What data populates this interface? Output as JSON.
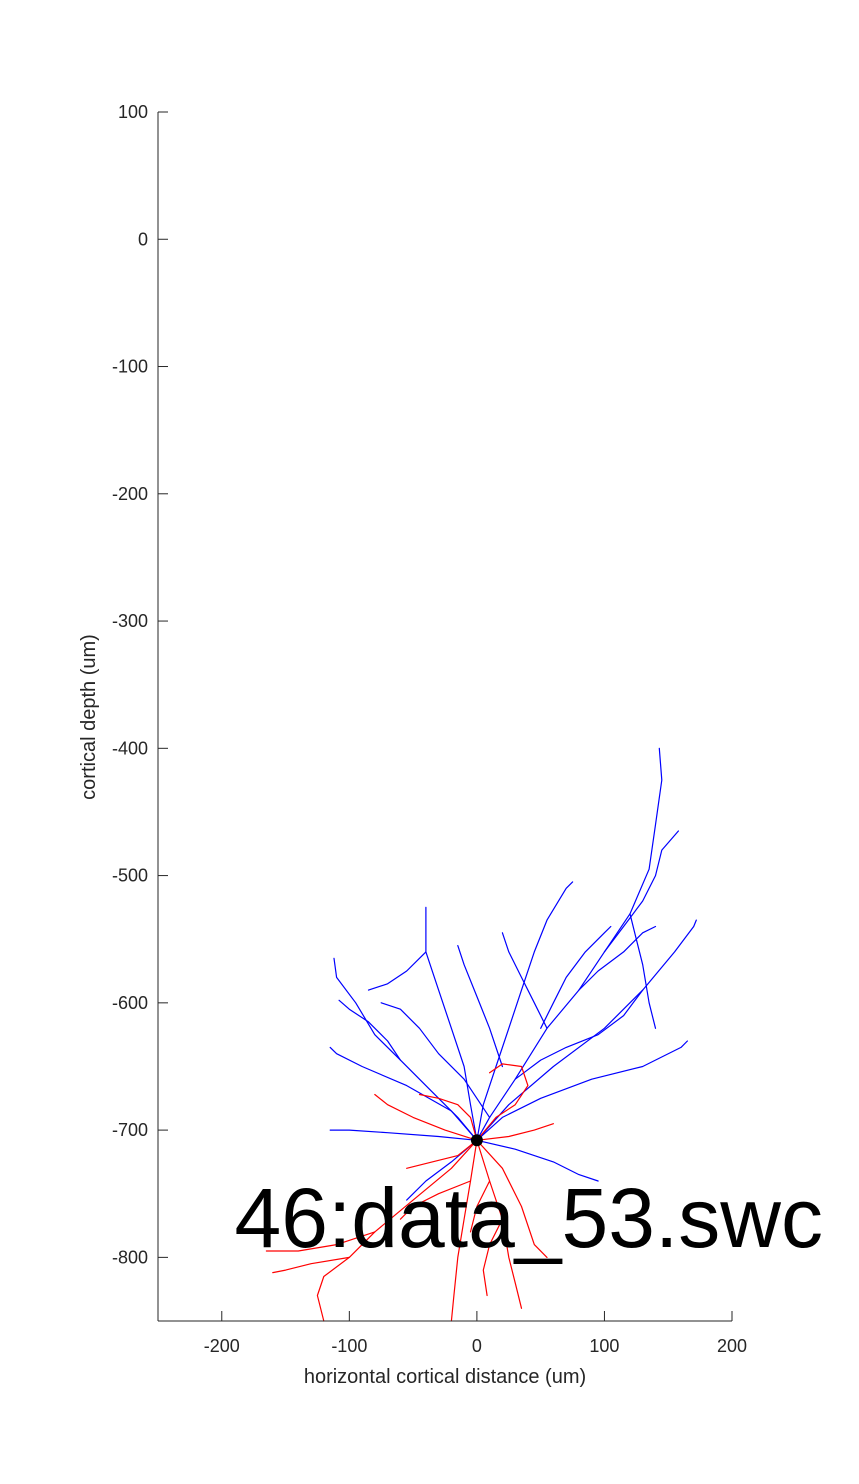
{
  "chart_data": {
    "type": "scatter",
    "title": "",
    "xlabel": "horizontal cortical distance (um)",
    "ylabel": "cortical depth (um)",
    "xlim": [
      -250,
      200
    ],
    "ylim": [
      -850,
      100
    ],
    "xticks": [
      -200,
      -100,
      0,
      100,
      200
    ],
    "yticks": [
      100,
      0,
      -100,
      -200,
      -300,
      -400,
      -500,
      -600,
      -700,
      -800
    ],
    "annotation": {
      "text": "46:data_53.swc",
      "x": -190,
      "y": -770
    },
    "grid": false,
    "legend": "none",
    "series": [
      {
        "role": "soma",
        "color": "#000000",
        "points": [
          [
            0,
            -708
          ]
        ]
      },
      {
        "role": "apical",
        "color": "#0000ff",
        "branches": [
          [
            [
              0,
              -708
            ],
            [
              10,
              -690
            ],
            [
              30,
              -660
            ],
            [
              55,
              -620
            ],
            [
              80,
              -590
            ],
            [
              100,
              -560
            ],
            [
              120,
              -530
            ],
            [
              135,
              -495
            ],
            [
              140,
              -460
            ],
            [
              145,
              -425
            ],
            [
              143,
              -400
            ]
          ],
          [
            [
              0,
              -708
            ],
            [
              -15,
              -690
            ],
            [
              -35,
              -670
            ],
            [
              -60,
              -645
            ],
            [
              -80,
              -625
            ],
            [
              -95,
              -600
            ],
            [
              -110,
              -580
            ],
            [
              -112,
              -565
            ]
          ],
          [
            [
              0,
              -708
            ],
            [
              -5,
              -680
            ],
            [
              -10,
              -650
            ],
            [
              -20,
              -620
            ],
            [
              -30,
              -590
            ],
            [
              -40,
              -560
            ],
            [
              -40,
              -525
            ]
          ],
          [
            [
              0,
              -708
            ],
            [
              5,
              -680
            ],
            [
              15,
              -650
            ],
            [
              25,
              -620
            ],
            [
              35,
              -590
            ],
            [
              45,
              -560
            ],
            [
              55,
              -535
            ],
            [
              70,
              -510
            ],
            [
              75,
              -505
            ]
          ],
          [
            [
              0,
              -708
            ],
            [
              25,
              -680
            ],
            [
              60,
              -650
            ],
            [
              100,
              -620
            ],
            [
              130,
              -590
            ],
            [
              155,
              -560
            ],
            [
              170,
              -540
            ],
            [
              172,
              -535
            ]
          ],
          [
            [
              0,
              -708
            ],
            [
              20,
              -690
            ],
            [
              50,
              -675
            ],
            [
              90,
              -660
            ],
            [
              130,
              -650
            ],
            [
              160,
              -635
            ],
            [
              165,
              -630
            ]
          ],
          [
            [
              0,
              -708
            ],
            [
              -30,
              -705
            ],
            [
              -70,
              -702
            ],
            [
              -100,
              -700
            ],
            [
              -115,
              -700
            ]
          ],
          [
            [
              0,
              -708
            ],
            [
              -20,
              -685
            ],
            [
              -55,
              -665
            ],
            [
              -90,
              -650
            ],
            [
              -110,
              -640
            ],
            [
              -115,
              -635
            ]
          ],
          [
            [
              50,
              -620
            ],
            [
              60,
              -600
            ],
            [
              70,
              -580
            ],
            [
              85,
              -560
            ],
            [
              100,
              -545
            ],
            [
              105,
              -540
            ]
          ],
          [
            [
              20,
              -650
            ],
            [
              10,
              -620
            ],
            [
              0,
              -595
            ],
            [
              -10,
              -570
            ],
            [
              -15,
              -555
            ]
          ],
          [
            [
              80,
              -590
            ],
            [
              95,
              -575
            ],
            [
              115,
              -560
            ],
            [
              130,
              -545
            ],
            [
              140,
              -540
            ]
          ],
          [
            [
              100,
              -560
            ],
            [
              115,
              -540
            ],
            [
              130,
              -520
            ],
            [
              140,
              -500
            ],
            [
              145,
              -480
            ],
            [
              158,
              -465
            ]
          ],
          [
            [
              30,
              -660
            ],
            [
              50,
              -645
            ],
            [
              70,
              -635
            ],
            [
              95,
              -625
            ],
            [
              115,
              -610
            ],
            [
              130,
              -590
            ]
          ],
          [
            [
              -40,
              -560
            ],
            [
              -55,
              -575
            ],
            [
              -70,
              -585
            ],
            [
              -85,
              -590
            ]
          ],
          [
            [
              10,
              -690
            ],
            [
              -10,
              -660
            ],
            [
              -30,
              -640
            ],
            [
              -45,
              -620
            ],
            [
              -60,
              -605
            ],
            [
              -75,
              -600
            ]
          ],
          [
            [
              0,
              -708
            ],
            [
              30,
              -715
            ],
            [
              60,
              -725
            ],
            [
              80,
              -735
            ],
            [
              95,
              -740
            ]
          ],
          [
            [
              0,
              -708
            ],
            [
              -20,
              -725
            ],
            [
              -40,
              -740
            ],
            [
              -55,
              -755
            ]
          ],
          [
            [
              55,
              -620
            ],
            [
              45,
              -600
            ],
            [
              35,
              -580
            ],
            [
              25,
              -560
            ],
            [
              20,
              -545
            ]
          ],
          [
            [
              120,
              -530
            ],
            [
              125,
              -550
            ],
            [
              130,
              -570
            ],
            [
              135,
              -600
            ],
            [
              140,
              -620
            ]
          ],
          [
            [
              -60,
              -645
            ],
            [
              -70,
              -630
            ],
            [
              -85,
              -615
            ],
            [
              -100,
              -605
            ],
            [
              -108,
              -598
            ]
          ]
        ]
      },
      {
        "role": "basal",
        "color": "#ff0000",
        "branches": [
          [
            [
              0,
              -708
            ],
            [
              -20,
              -730
            ],
            [
              -50,
              -755
            ],
            [
              -80,
              -780
            ],
            [
              -100,
              -800
            ],
            [
              -120,
              -815
            ],
            [
              -125,
              -830
            ],
            [
              -120,
              -850
            ]
          ],
          [
            [
              -80,
              -780
            ],
            [
              -110,
              -790
            ],
            [
              -140,
              -795
            ],
            [
              -165,
              -795
            ]
          ],
          [
            [
              -100,
              -800
            ],
            [
              -130,
              -805
            ],
            [
              -150,
              -810
            ],
            [
              -160,
              -812
            ]
          ],
          [
            [
              0,
              -708
            ],
            [
              -5,
              -740
            ],
            [
              -10,
              -770
            ],
            [
              -15,
              -800
            ],
            [
              -18,
              -830
            ],
            [
              -20,
              -850
            ]
          ],
          [
            [
              0,
              -708
            ],
            [
              10,
              -740
            ],
            [
              20,
              -770
            ],
            [
              25,
              -800
            ],
            [
              30,
              -820
            ],
            [
              35,
              -840
            ]
          ],
          [
            [
              0,
              -708
            ],
            [
              20,
              -730
            ],
            [
              35,
              -760
            ],
            [
              45,
              -790
            ],
            [
              55,
              -800
            ]
          ],
          [
            [
              0,
              -708
            ],
            [
              -25,
              -700
            ],
            [
              -50,
              -690
            ],
            [
              -70,
              -680
            ],
            [
              -80,
              -672
            ]
          ],
          [
            [
              0,
              -708
            ],
            [
              25,
              -705
            ],
            [
              45,
              -700
            ],
            [
              60,
              -695
            ]
          ],
          [
            [
              0,
              -708
            ],
            [
              -15,
              -720
            ],
            [
              -35,
              -725
            ],
            [
              -55,
              -730
            ]
          ],
          [
            [
              10,
              -740
            ],
            [
              0,
              -760
            ],
            [
              -5,
              -780
            ]
          ],
          [
            [
              0,
              -708
            ],
            [
              15,
              -690
            ],
            [
              30,
              -680
            ],
            [
              40,
              -665
            ],
            [
              35,
              -650
            ],
            [
              20,
              -648
            ],
            [
              10,
              -655
            ]
          ],
          [
            [
              -5,
              -740
            ],
            [
              -30,
              -750
            ],
            [
              -50,
              -760
            ],
            [
              -60,
              -770
            ]
          ],
          [
            [
              20,
              -770
            ],
            [
              10,
              -790
            ],
            [
              5,
              -810
            ],
            [
              8,
              -830
            ]
          ],
          [
            [
              0,
              -708
            ],
            [
              -5,
              -690
            ],
            [
              -15,
              -680
            ],
            [
              -30,
              -675
            ],
            [
              -45,
              -672
            ]
          ]
        ]
      }
    ]
  }
}
